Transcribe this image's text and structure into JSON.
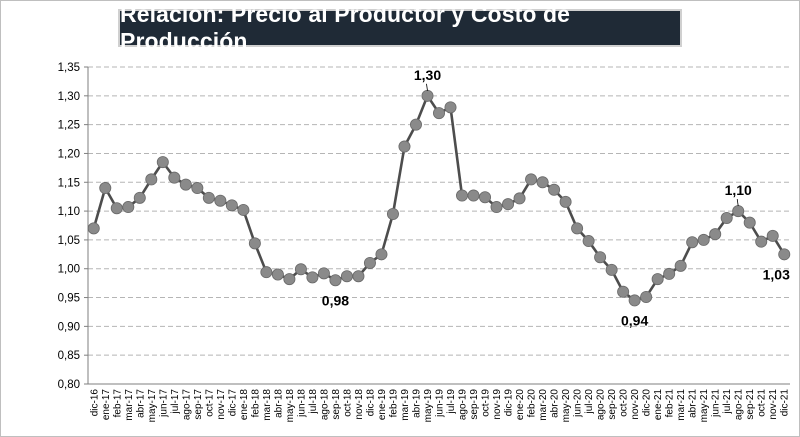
{
  "chart_data": {
    "type": "line",
    "title": "Relación: Precio al Productor y Costo de Producción",
    "ylim": [
      0.8,
      1.35
    ],
    "ytick_step": 0.05,
    "grid": true,
    "line_color": "#4d4d4d",
    "marker_color": "#8a8a8a",
    "categories": [
      "dic-16",
      "ene-17",
      "feb-17",
      "mar-17",
      "abr-17",
      "may-17",
      "jun-17",
      "jul-17",
      "ago-17",
      "sep-17",
      "oct-17",
      "nov-17",
      "dic-17",
      "ene-18",
      "feb-18",
      "mar-18",
      "abr-18",
      "may-18",
      "jun-18",
      "jul-18",
      "ago-18",
      "sep-18",
      "oct-18",
      "nov-18",
      "dic-18",
      "ene-19",
      "feb-19",
      "mar-19",
      "abr-19",
      "may-19",
      "jun-19",
      "jul-19",
      "ago-19",
      "sep-19",
      "oct-19",
      "nov-19",
      "dic-19",
      "ene-20",
      "feb-20",
      "mar-20",
      "abr-20",
      "may-20",
      "jun-20",
      "jul-20",
      "ago-20",
      "sep-20",
      "oct-20",
      "nov-20",
      "dic-20",
      "ene-21",
      "feb-21",
      "mar-21",
      "abr-21",
      "may-21",
      "jun-21",
      "jul-21",
      "ago-21",
      "sep-21",
      "oct-21",
      "nov-21",
      "dic-21"
    ],
    "x_labels": [
      "dic-16",
      "ene-17",
      "feb-17",
      "mar-17",
      "abr-17",
      "may-17",
      "jun-17",
      "jul-17",
      "ago-17",
      "sep-17",
      "oct-17",
      "nov-17",
      "dic-17",
      "ene-18",
      "feb-18",
      "mar-18",
      "abr-18",
      "may-18",
      "jun-18",
      "jul-18",
      "ago-18",
      "sep-18",
      "oct-18",
      "nov-18",
      "dic-18",
      "ene-19",
      "feb-19",
      "mar-19",
      "abr-19",
      "may-19",
      "jun-19",
      "jul-19",
      "ago-19",
      "sep-19",
      "oct-19",
      "nov-19",
      "dic-19",
      "ene-20",
      "feb-20",
      "mar-20",
      "abr-20",
      "may-20",
      "jun-20",
      "jul-20",
      "ago-20",
      "sep-20",
      "oct-20",
      "nov-20",
      "dic-20",
      "ene-21",
      "feb-21",
      "mar-21",
      "abr-21",
      "may-21",
      "jun-21",
      "jul-21",
      "ago-21",
      "sep-21",
      "oct-21",
      "nov-21",
      "dic-21"
    ],
    "values": [
      1.07,
      1.14,
      1.105,
      1.107,
      1.123,
      1.155,
      1.185,
      1.158,
      1.146,
      1.14,
      1.123,
      1.118,
      1.11,
      1.102,
      1.044,
      0.994,
      0.99,
      0.982,
      0.999,
      0.985,
      0.992,
      0.98,
      0.987,
      0.987,
      1.01,
      1.025,
      1.095,
      1.212,
      1.25,
      1.3,
      1.27,
      1.28,
      1.127,
      1.127,
      1.124,
      1.107,
      1.112,
      1.122,
      1.155,
      1.15,
      1.137,
      1.116,
      1.07,
      1.048,
      1.02,
      0.998,
      0.96,
      0.945,
      0.951,
      0.982,
      0.991,
      1.005,
      1.046,
      1.05,
      1.06,
      1.088,
      1.1,
      1.08,
      1.047,
      1.057,
      1.025
    ],
    "annotations": [
      {
        "index": 21,
        "text": "0,98",
        "position": "below"
      },
      {
        "index": 29,
        "text": "1,30",
        "position": "above"
      },
      {
        "index": 47,
        "text": "0,94",
        "position": "below"
      },
      {
        "index": 56,
        "text": "1,10",
        "position": "above"
      },
      {
        "index": 60,
        "text": "1,03",
        "position": "below"
      }
    ]
  }
}
